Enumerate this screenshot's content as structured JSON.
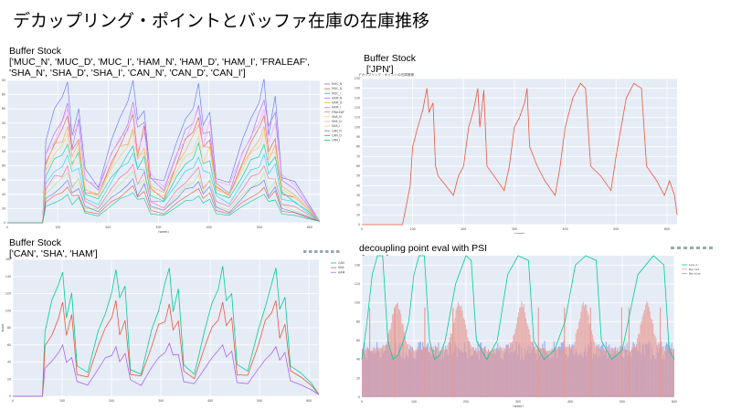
{
  "slide": {
    "title": "デカップリング・ポイントとバッファ在庫の在庫推移"
  },
  "panels": [
    {
      "id": "p1",
      "title": "Buffer Stock\n['MUC_N', 'MUC_D', 'MUC_I', 'HAM_N', 'HAM_D', 'HAM_I', 'FRALEAF',\n'SHA_N', 'SHA_D', 'SHA_I', 'CAN_N', 'CAN_D', 'CAN_I']"
    },
    {
      "id": "p2",
      "title": "Buffer Stock\n ['JPN']",
      "inner_title": "デカップリング・ポイントの在庫推移"
    },
    {
      "id": "p3",
      "title": "Buffer Stock\n['CAN', 'SHA', 'HAM']"
    },
    {
      "id": "p4",
      "title": "decoupling point eval with PSI\n ['JPN']"
    }
  ],
  "colors": {
    "plot_bg": "#e5ecf6",
    "grid": "#ffffff",
    "jpn_line": "#ef553b",
    "teal": "#00cc96",
    "red": "#ef553b",
    "purple": "#ab63fa",
    "bar_red": "#e89a93",
    "bar_blue": "#8fa2f0"
  },
  "chart_data": [
    {
      "type": "line",
      "panel": "p1",
      "x_range": [
        0,
        620
      ],
      "y_range": [
        0,
        200
      ],
      "xticks": [
        0,
        100,
        200,
        300,
        400,
        500,
        600
      ],
      "yticks": [
        0,
        20,
        40,
        60,
        80,
        100,
        120,
        140,
        160,
        180,
        200
      ],
      "xlabel": "(week)",
      "ylabel": "",
      "legend_position": "right",
      "series": [
        {
          "name": "MUC_N",
          "color": "#636efa",
          "peaks": [
            198,
            200,
            196,
            202
          ],
          "base": 60
        },
        {
          "name": "MUC_D",
          "color": "#ef553b",
          "peaks": [
            150,
            152,
            148,
            150
          ],
          "base": 40
        },
        {
          "name": "MUC_I",
          "color": "#00cc96",
          "peaks": [
            110,
            108,
            112,
            110
          ],
          "base": 35
        },
        {
          "name": "HAM_N",
          "color": "#ab63fa",
          "peaks": [
            168,
            170,
            165,
            172
          ],
          "base": 50
        },
        {
          "name": "HAM_D",
          "color": "#ffa15a",
          "peaks": [
            135,
            132,
            138,
            135
          ],
          "base": 45
        },
        {
          "name": "HAM_I",
          "color": "#19d3f3",
          "peaks": [
            95,
            98,
            92,
            96
          ],
          "base": 30
        },
        {
          "name": "FRALEAF",
          "color": "#ff6692",
          "peaks": [
            80,
            82,
            78,
            80
          ],
          "base": 25
        },
        {
          "name": "SHA_N",
          "color": "#b6e880",
          "peaks": [
            70,
            72,
            68,
            70
          ],
          "base": 20
        },
        {
          "name": "SHA_D",
          "color": "#ff97ff",
          "peaks": [
            160,
            158,
            162,
            160
          ],
          "base": 55
        },
        {
          "name": "SHA_I",
          "color": "#fecb52",
          "peaks": [
            125,
            128,
            122,
            126
          ],
          "base": 40
        },
        {
          "name": "CAN_N",
          "color": "#636efa",
          "peaks": [
            60,
            62,
            58,
            60
          ],
          "base": 18
        },
        {
          "name": "CAN_D",
          "color": "#ef553b",
          "peaks": [
            50,
            52,
            48,
            50
          ],
          "base": 15
        },
        {
          "name": "CAN_I",
          "color": "#00cc96",
          "peaks": [
            40,
            42,
            38,
            40
          ],
          "base": 12
        }
      ]
    },
    {
      "type": "line",
      "panel": "p2",
      "x_range": [
        0,
        620
      ],
      "y_range": [
        0,
        150
      ],
      "xticks": [
        0,
        100,
        200,
        300,
        400,
        500,
        600
      ],
      "yticks": [
        0,
        10,
        20,
        30,
        40,
        50,
        60,
        70,
        80,
        90,
        100,
        110,
        120,
        130,
        140,
        150
      ],
      "xlabel": "(week)",
      "ylabel": "stock",
      "series": [
        {
          "name": "JPN",
          "color": "#ef553b",
          "points": [
            [
              0,
              0
            ],
            [
              80,
              0
            ],
            [
              95,
              40
            ],
            [
              100,
              80
            ],
            [
              110,
              100
            ],
            [
              120,
              118
            ],
            [
              128,
              140
            ],
            [
              132,
              115
            ],
            [
              140,
              125
            ],
            [
              145,
              60
            ],
            [
              150,
              50
            ],
            [
              165,
              40
            ],
            [
              180,
              30
            ],
            [
              190,
              50
            ],
            [
              200,
              60
            ],
            [
              210,
              100
            ],
            [
              220,
              118
            ],
            [
              228,
              140
            ],
            [
              232,
              100
            ],
            [
              240,
              138
            ],
            [
              246,
              60
            ],
            [
              260,
              50
            ],
            [
              280,
              35
            ],
            [
              290,
              60
            ],
            [
              300,
              100
            ],
            [
              310,
              110
            ],
            [
              320,
              125
            ],
            [
              325,
              140
            ],
            [
              330,
              80
            ],
            [
              345,
              60
            ],
            [
              360,
              45
            ],
            [
              380,
              30
            ],
            [
              390,
              60
            ],
            [
              400,
              100
            ],
            [
              415,
              130
            ],
            [
              430,
              145
            ],
            [
              440,
              140
            ],
            [
              450,
              60
            ],
            [
              470,
              50
            ],
            [
              490,
              35
            ],
            [
              500,
              70
            ],
            [
              520,
              130
            ],
            [
              535,
              145
            ],
            [
              550,
              140
            ],
            [
              560,
              60
            ],
            [
              580,
              45
            ],
            [
              595,
              30
            ],
            [
              605,
              45
            ],
            [
              615,
              30
            ],
            [
              620,
              10
            ]
          ]
        }
      ]
    },
    {
      "type": "line",
      "panel": "p3",
      "x_range": [
        0,
        620
      ],
      "y_range": [
        0,
        160
      ],
      "xticks": [
        0,
        100,
        200,
        300,
        400,
        500,
        600
      ],
      "yticks": [
        0,
        20,
        40,
        60,
        80,
        100,
        120,
        140,
        160
      ],
      "xlabel": "(week)",
      "ylabel": "stock",
      "legend_position": "top-right",
      "series": [
        {
          "name": "CAN",
          "color": "#00cc96",
          "peaks": [
            145,
            148,
            150,
            152,
            150
          ],
          "base": 30
        },
        {
          "name": "SHA",
          "color": "#ef553b",
          "peaks": [
            110,
            112,
            108,
            110,
            112
          ],
          "base": 25
        },
        {
          "name": "HAM",
          "color": "#ab63fa",
          "peaks": [
            60,
            58,
            62,
            60,
            58
          ],
          "base": 15
        }
      ]
    },
    {
      "type": "bar",
      "panel": "p4",
      "x_range": [
        0,
        600
      ],
      "y_range": [
        0,
        150
      ],
      "y2_range": [
        0,
        1
      ],
      "xticks": [
        0,
        100,
        200,
        300,
        400,
        500,
        600
      ],
      "yticks": [
        0,
        20,
        40,
        60,
        80,
        100,
        120,
        140
      ],
      "xlabel": "(week)",
      "legend_position": "top-right",
      "series": [
        {
          "name": "Line A",
          "kind": "line",
          "color": "#00cc96"
        },
        {
          "name": "Bar red",
          "kind": "bar",
          "color": "#e89a93"
        },
        {
          "name": "Bar blue",
          "kind": "bar",
          "color": "#8fa2f0"
        }
      ]
    }
  ]
}
